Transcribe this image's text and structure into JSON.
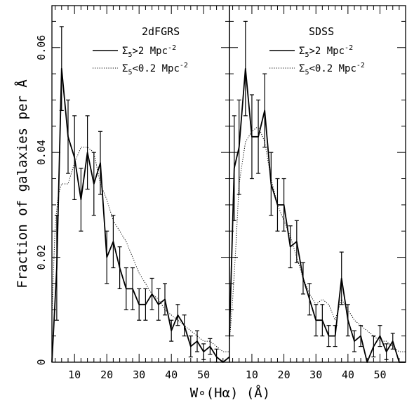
{
  "chart_data": [
    {
      "type": "line",
      "title": "2dFGRS",
      "xlabel": "W∘(Hα) (Å)",
      "ylabel": "Fraction of galaxies per Å",
      "xlim": [
        3,
        58
      ],
      "ylim": [
        0,
        0.068
      ],
      "xticks": [
        10,
        20,
        30,
        40,
        50
      ],
      "yticks": [
        0,
        0.02,
        0.04,
        0.06
      ],
      "ytick_labels": [
        "0",
        "0.02",
        "0.04",
        "0.06"
      ],
      "legend": [
        {
          "symbol": "Σ",
          "sub": "5",
          "text": ">2 Mpc",
          "sup": "-2",
          "style": "solid"
        },
        {
          "symbol": "Σ",
          "sub": "5",
          "text": "<0.2 Mpc",
          "sup": "-2",
          "style": "dotted"
        }
      ],
      "legend_position": "top-right",
      "series": [
        {
          "line_style": "solid",
          "x": [
            3,
            4.5,
            6,
            8,
            10,
            12,
            14,
            16,
            18,
            20,
            22,
            24,
            26,
            28,
            30,
            32,
            34,
            36,
            38,
            40,
            42,
            44,
            46,
            48,
            50,
            52,
            54,
            56,
            58
          ],
          "y": [
            0.0,
            0.018,
            0.056,
            0.043,
            0.039,
            0.031,
            0.04,
            0.034,
            0.038,
            0.02,
            0.023,
            0.018,
            0.014,
            0.014,
            0.011,
            0.011,
            0.013,
            0.011,
            0.012,
            0.006,
            0.009,
            0.007,
            0.003,
            0.004,
            0.002,
            0.003,
            0.001,
            0.0,
            0.001
          ],
          "err": [
            0.0,
            0.01,
            0.008,
            0.007,
            0.008,
            0.006,
            0.007,
            0.006,
            0.006,
            0.005,
            0.005,
            0.004,
            0.004,
            0.004,
            0.003,
            0.003,
            0.003,
            0.003,
            0.003,
            0.002,
            0.002,
            0.002,
            0.002,
            0.002,
            0.0015,
            0.0015,
            0.0015,
            0.0,
            0.0
          ]
        },
        {
          "line_style": "dotted",
          "x": [
            3,
            4,
            5,
            6,
            8,
            10,
            12,
            14,
            16,
            18,
            20,
            22,
            24,
            26,
            28,
            30,
            32,
            34,
            36,
            38,
            40,
            42,
            44,
            46,
            48,
            50,
            52,
            54,
            56,
            58
          ],
          "y": [
            0.009,
            0.026,
            0.032,
            0.034,
            0.034,
            0.038,
            0.041,
            0.041,
            0.04,
            0.034,
            0.031,
            0.027,
            0.025,
            0.023,
            0.02,
            0.017,
            0.015,
            0.013,
            0.012,
            0.01,
            0.009,
            0.008,
            0.007,
            0.006,
            0.005,
            0.004,
            0.004,
            0.003,
            0.002,
            0.002
          ]
        }
      ]
    },
    {
      "type": "line",
      "title": "SDSS",
      "xlabel": "W∘(Hα) (Å)",
      "xlim": [
        3,
        58
      ],
      "ylim": [
        0,
        0.068
      ],
      "xticks": [
        10,
        20,
        30,
        40,
        50
      ],
      "legend": [
        {
          "symbol": "Σ",
          "sub": "5",
          "text": ">2 Mpc",
          "sup": "-2",
          "style": "solid"
        },
        {
          "symbol": "Σ",
          "sub": "5",
          "text": "<0.2 Mpc",
          "sup": "-2",
          "style": "dotted"
        }
      ],
      "legend_position": "top-right",
      "series": [
        {
          "line_style": "solid",
          "x": [
            3,
            4.5,
            6,
            8,
            10,
            12,
            14,
            16,
            18,
            20,
            22,
            24,
            26,
            28,
            30,
            32,
            34,
            36,
            38,
            40,
            42,
            44,
            46,
            48,
            50,
            52,
            54,
            56,
            58
          ],
          "y": [
            0.005,
            0.037,
            0.041,
            0.056,
            0.043,
            0.043,
            0.048,
            0.034,
            0.03,
            0.03,
            0.022,
            0.023,
            0.016,
            0.012,
            0.008,
            0.008,
            0.005,
            0.005,
            0.016,
            0.008,
            0.004,
            0.005,
            0.0,
            0.003,
            0.005,
            0.002,
            0.004,
            0.0,
            0.0
          ],
          "err": [
            0.0,
            0.01,
            0.009,
            0.009,
            0.008,
            0.007,
            0.007,
            0.006,
            0.005,
            0.005,
            0.004,
            0.004,
            0.003,
            0.003,
            0.003,
            0.003,
            0.002,
            0.002,
            0.005,
            0.003,
            0.002,
            0.002,
            0.0,
            0.002,
            0.002,
            0.0015,
            0.0015,
            0.0,
            0.0
          ]
        },
        {
          "line_style": "dotted",
          "x": [
            3,
            4,
            5,
            6,
            8,
            10,
            12,
            14,
            16,
            18,
            20,
            22,
            24,
            26,
            28,
            30,
            32,
            34,
            36,
            38,
            40,
            42,
            44,
            46,
            48,
            50,
            52,
            54,
            56,
            58
          ],
          "y": [
            0.004,
            0.012,
            0.022,
            0.034,
            0.042,
            0.044,
            0.045,
            0.042,
            0.035,
            0.03,
            0.027,
            0.024,
            0.02,
            0.016,
            0.013,
            0.011,
            0.012,
            0.011,
            0.008,
            0.012,
            0.01,
            0.008,
            0.007,
            0.006,
            0.005,
            0.004,
            0.004,
            0.003,
            0.002,
            0.002
          ]
        }
      ]
    }
  ]
}
